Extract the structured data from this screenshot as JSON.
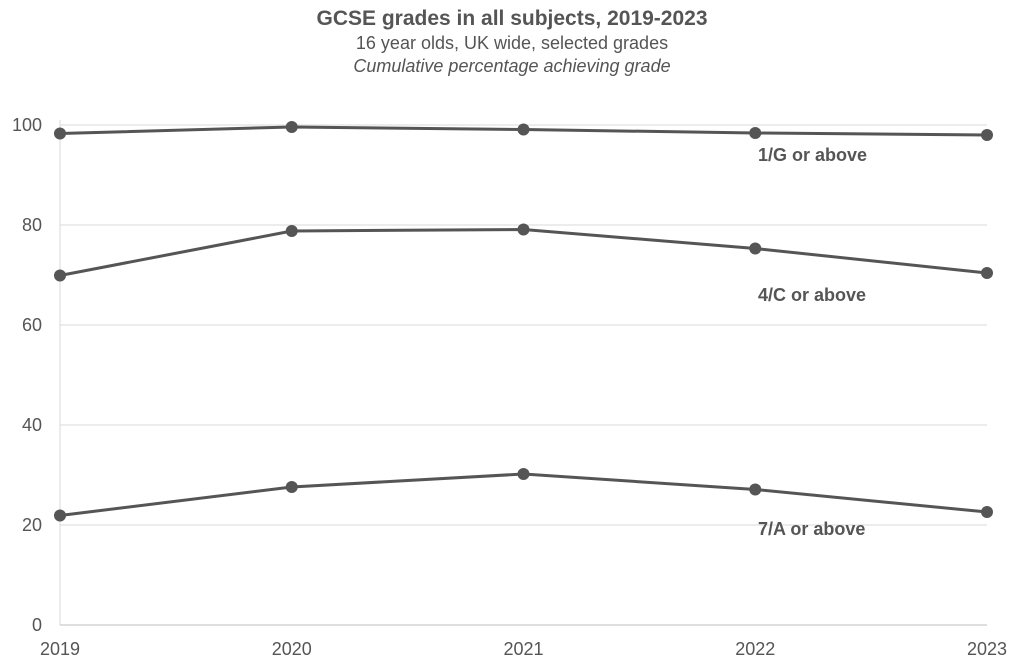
{
  "chart_data": {
    "type": "line",
    "title": "GCSE grades in all subjects, 2019-2023",
    "subtitle": "16 year olds, UK wide, selected grades",
    "subtitle2": "Cumulative percentage achieving grade",
    "categories": [
      "2019",
      "2020",
      "2021",
      "2022",
      "2023"
    ],
    "ylim": [
      0,
      100
    ],
    "yticks": [
      0,
      20,
      40,
      60,
      80,
      100
    ],
    "grid": true,
    "legend": "inline labels near right end of each line",
    "line_color": "#555555",
    "grid_color": "#d9d9d9",
    "series": [
      {
        "name": "1/G or above",
        "values": [
          98.3,
          99.6,
          99.1,
          98.4,
          98.0
        ]
      },
      {
        "name": "4/C or above",
        "values": [
          69.9,
          78.8,
          79.1,
          75.3,
          70.4
        ]
      },
      {
        "name": "7/A or above",
        "values": [
          21.9,
          27.6,
          30.2,
          27.1,
          22.6
        ]
      }
    ]
  }
}
